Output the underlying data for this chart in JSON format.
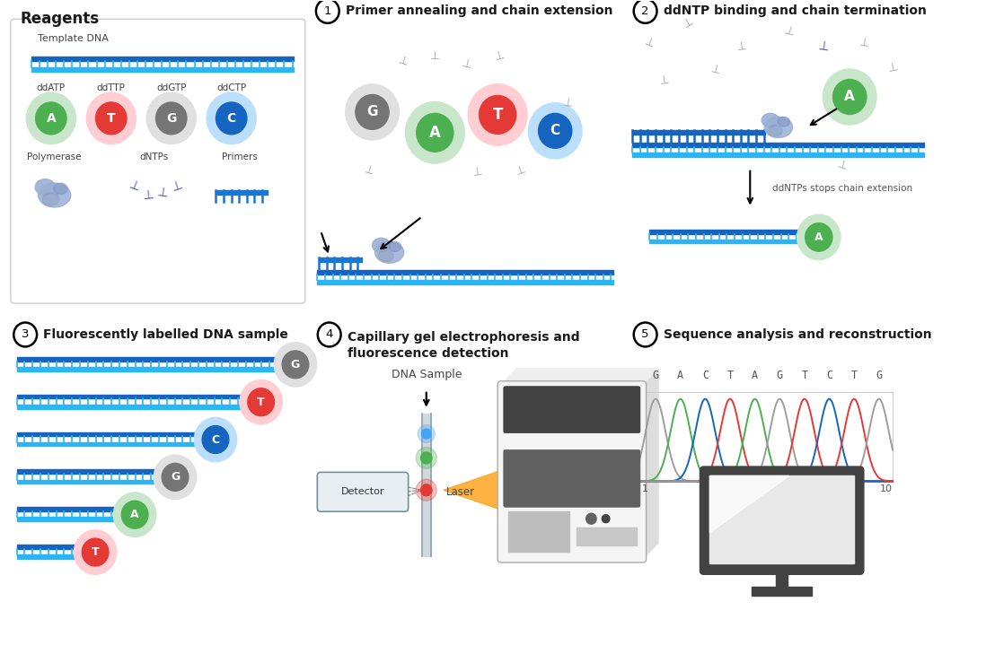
{
  "bg_color": "#ffffff",
  "title_color": "#1a1a1a",
  "dna_blue_top": "#1565C0",
  "dna_blue_bot": "#29B6F6",
  "dna_tick": "#29B6F6",
  "primer_blue": "#1976D2",
  "poly_color": "#9AAFD4",
  "poly_dark": "#7B8FC4",
  "nuc_A_fill": "#4CAF50",
  "nuc_A_glow": "#C8E6C9",
  "nuc_T_fill": "#E53935",
  "nuc_T_glow": "#FFCDD2",
  "nuc_G_fill": "#757575",
  "nuc_G_glow": "#E0E0E0",
  "nuc_C_fill": "#1565C0",
  "nuc_C_glow": "#BBDEFB",
  "arrow_color": "#222222",
  "dntps_color": "#3949AB",
  "dntp_grey": "#9E9E9E",
  "box_edge": "#cccccc",
  "step1_title": "Primer annealing and chain extension",
  "step2_title": "ddNTP binding and chain termination",
  "step3_title": "Fluorescently labelled DNA sample",
  "step4_title": "Capillary gel electrophoresis and\nfluorescence detection",
  "step5_title": "Sequence analysis and reconstruction",
  "sequence_letters": [
    "G",
    "A",
    "C",
    "T",
    "A",
    "G",
    "T",
    "C",
    "T",
    "G"
  ],
  "chrom_G": "#9E9E9E",
  "chrom_A": "#4CAF50",
  "chrom_C": "#1565C0",
  "chrom_T": "#E53935",
  "laser_color": "#FFA726",
  "fluor_green": "#4CAF50",
  "fluor_blue": "#42A5F5",
  "fluor_red": "#E53935",
  "cap_color": "#CFD8DC",
  "cap_dark": "#90A4AE",
  "machine_white": "#F5F5F5",
  "machine_grey": "#BDBDBD",
  "machine_dark": "#616161",
  "machine_darkgrey": "#424242",
  "monitor_frame": "#424242",
  "monitor_screen": "#E8E8E8",
  "monitor_highlight": "#ffffff",
  "monitor_stand": "#424242"
}
